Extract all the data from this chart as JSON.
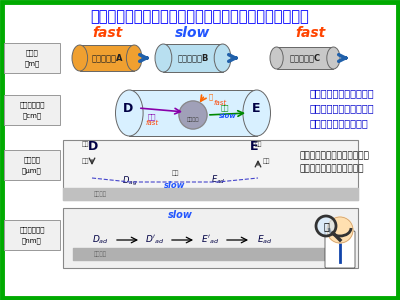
{
  "title": "トップダウン型反応速度論解析：ボトルネックが可視化",
  "title_color": "#0000ff",
  "title_fontsize": 10.5,
  "bg_color": "#e8e8e8",
  "border_color": "#00aa00",
  "text_right1": "メートルからナノメート\nルスケールまで同じ様に\n記述できる唯一の手法",
  "text_right2": "実産業レベルから分子レベル\nまで一気に見通せる顕微鏡",
  "reactor_A_color": "#f0a030",
  "reactor_B_color": "#b8dff0",
  "reactor_C_color": "#c8c8c8",
  "arrow_color": "#2060aa",
  "scale_labels": [
    [
      "実産業",
      "（m）"
    ],
    [
      "ラボスケール",
      "（cm）"
    ],
    [
      "触媒粒子",
      "（μm）"
    ],
    [
      "触媒粒子表面",
      "（nm）"
    ]
  ]
}
